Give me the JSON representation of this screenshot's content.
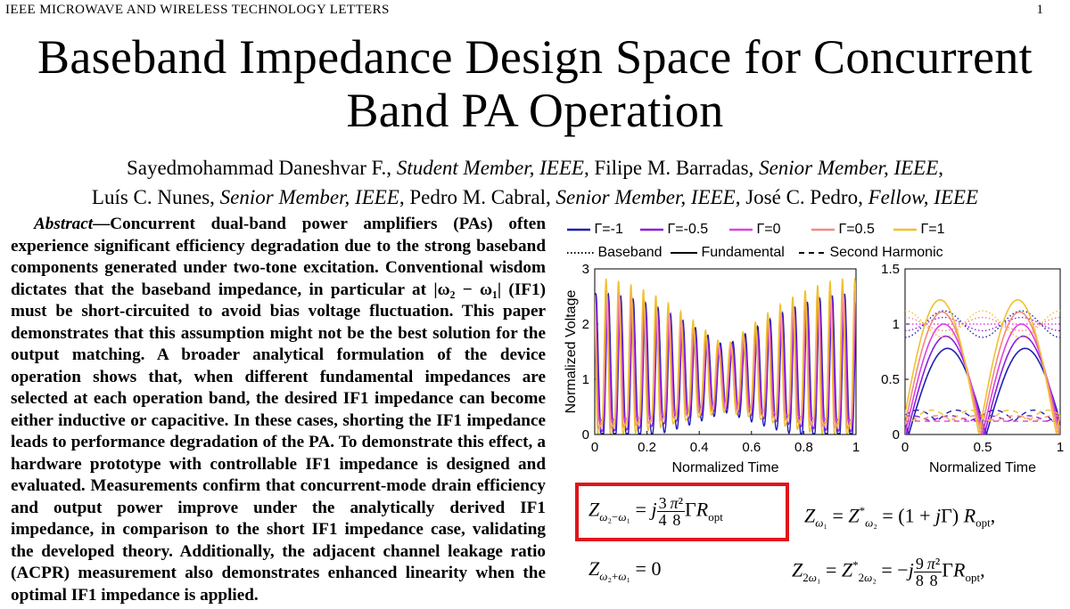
{
  "header": {
    "journal": "IEEE MICROWAVE AND WIRELESS TECHNOLOGY LETTERS",
    "page": "1"
  },
  "title": {
    "line1": "Baseband Impedance Design Space for Concurrent",
    "line2": "Band PA Operation"
  },
  "authors": {
    "line1": [
      {
        "name": "Sayedmohammad Daneshvar F., ",
        "role": "Student Member, IEEE"
      },
      {
        "name": ", Filipe M. Barradas, ",
        "role": "Senior Member, IEEE"
      },
      {
        "name": ",",
        "role": ""
      }
    ],
    "line2": [
      {
        "name": "Luís C. Nunes, ",
        "role": "Senior Member, IEEE"
      },
      {
        "name": ", Pedro M. Cabral, ",
        "role": "Senior Member, IEEE"
      },
      {
        "name": ", José C. Pedro, ",
        "role": "Fellow, IEEE"
      }
    ]
  },
  "abstract": {
    "lead": "Abstract",
    "text": "—Concurrent dual-band power amplifiers (PAs) often experience significant efficiency degradation due to the strong baseband components generated under two-tone excitation. Conventional wisdom dictates that the baseband impedance, in particular at |ω₂ − ω₁| (IF1) must be short-circuited to avoid bias voltage fluctuation. This paper demonstrates that this assumption might not be the best solution for the output matching. A broader analytical formulation of the device operation shows that, when different fundamental impedances are selected at each operation band, the desired IF1 impedance can become either inductive or capacitive. In these cases, shorting the IF1 impedance leads to performance degradation of the PA. To demonstrate this effect, a hardware prototype with controllable IF1 impedance is designed and evaluated. Measurements confirm that concurrent-mode drain efficiency and output power improve under the analytically derived IF1 impedance, in comparison to the short IF1 impedance case, validating the developed theory. Additionally, the adjacent channel leakage ratio (ACPR) measurement also demonstrates enhanced linearity when the optimal IF1 impedance is applied."
  },
  "legend": {
    "gamma_series": [
      {
        "label": "Γ=-1",
        "color": "#1f1fb4"
      },
      {
        "label": "Γ=-0.5",
        "color": "#8a1fe0"
      },
      {
        "label": "Γ=0",
        "color": "#e040e0"
      },
      {
        "label": "Γ=0.5",
        "color": "#f08a80"
      },
      {
        "label": "Γ=1",
        "color": "#f0c030"
      }
    ],
    "styles": [
      {
        "label": "Baseband",
        "dash": "dotted"
      },
      {
        "label": "Fundamental",
        "dash": "solid"
      },
      {
        "label": "Second Harmonic",
        "dash": "dashed"
      }
    ]
  },
  "chart_data": [
    {
      "type": "line",
      "xlabel": "Normalized Time",
      "ylabel": "Normalized Voltage",
      "xlim": [
        0,
        1
      ],
      "ylim": [
        0,
        3
      ],
      "xticks": [
        "0",
        "0.2",
        "0.4",
        "0.6",
        "0.8",
        "1"
      ],
      "yticks": [
        "0",
        "1",
        "2",
        "3"
      ],
      "series": [
        {
          "name": "Γ=-1"
        },
        {
          "name": "Γ=-0.5"
        },
        {
          "name": "Γ=0"
        },
        {
          "name": "Γ=0.5"
        },
        {
          "name": "Γ=1"
        }
      ]
    },
    {
      "type": "line",
      "xlabel": "Normalized Time",
      "xlim": [
        0,
        1
      ],
      "ylim": [
        0,
        1.5
      ],
      "xticks": [
        "0",
        "0.5",
        "1"
      ],
      "yticks": [
        "0",
        "0.5",
        "1",
        "1.5"
      ],
      "series": [
        {
          "name": "Γ=-1"
        },
        {
          "name": "Γ=-0.5"
        },
        {
          "name": "Γ=0"
        },
        {
          "name": "Γ=0.5"
        },
        {
          "name": "Γ=1"
        }
      ]
    }
  ],
  "equations": {
    "eq1": "Z_{ω2−ω1} = j (3/4)(π²/8) Γ R_opt",
    "eq2": "Z_{ω1} = Z*_{ω2} = (1 + jΓ) R_opt,",
    "eq3": "Z_{ω2+ω1} = 0",
    "eq4": "Z_{2ω1} = Z*_{2ω2} = −j (9/8)(π²/8) Γ R_opt,",
    "highlight_color": "#e0141b"
  }
}
